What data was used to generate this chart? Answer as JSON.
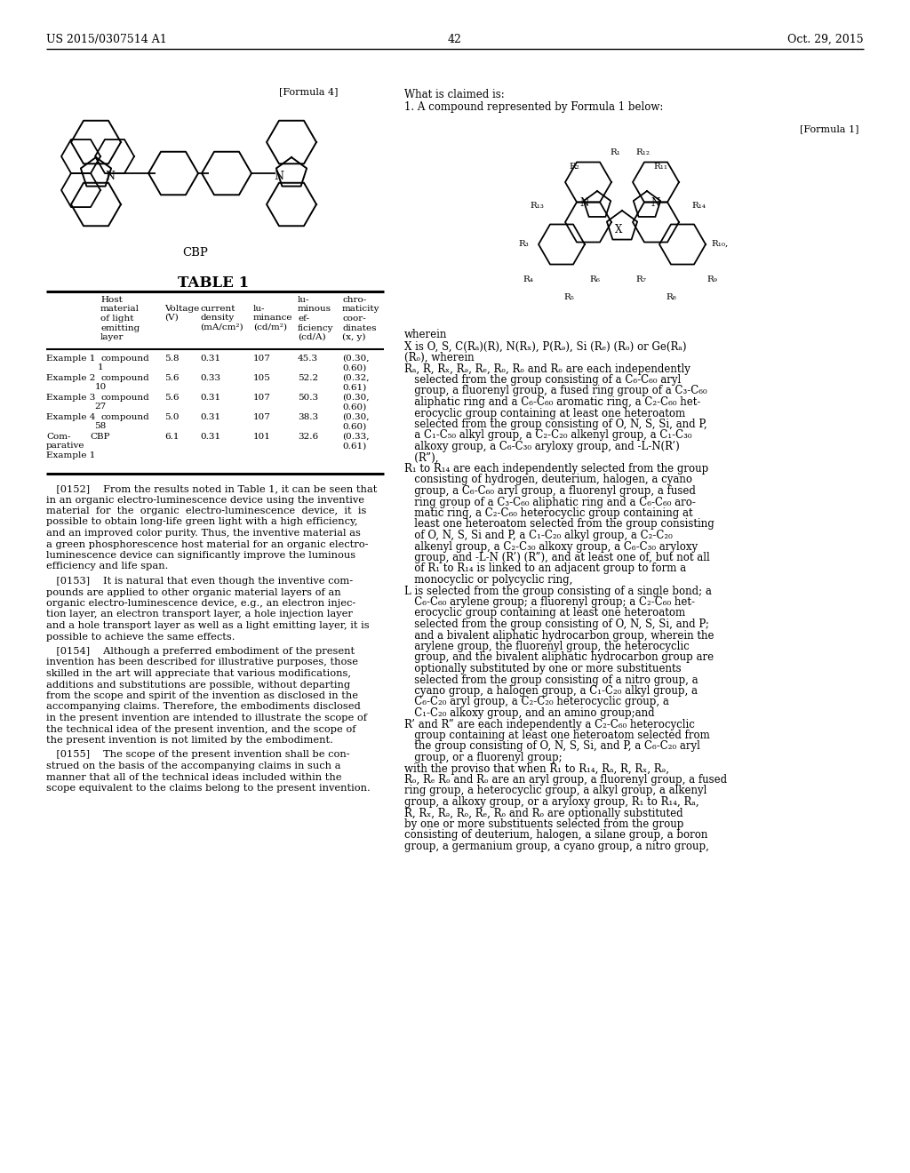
{
  "page_header_left": "US 2015/0307514 A1",
  "page_header_right": "Oct. 29, 2015",
  "page_number": "42",
  "formula4_label": "[Formula 4]",
  "cbp_label": "CBP",
  "table_title": "TABLE 1",
  "formula1_label": "[Formula 1]",
  "right_col_claim_title": "What is claimed is:",
  "right_col_claim1": "1. A compound represented by Formula 1 below:",
  "bg_color": "#ffffff"
}
